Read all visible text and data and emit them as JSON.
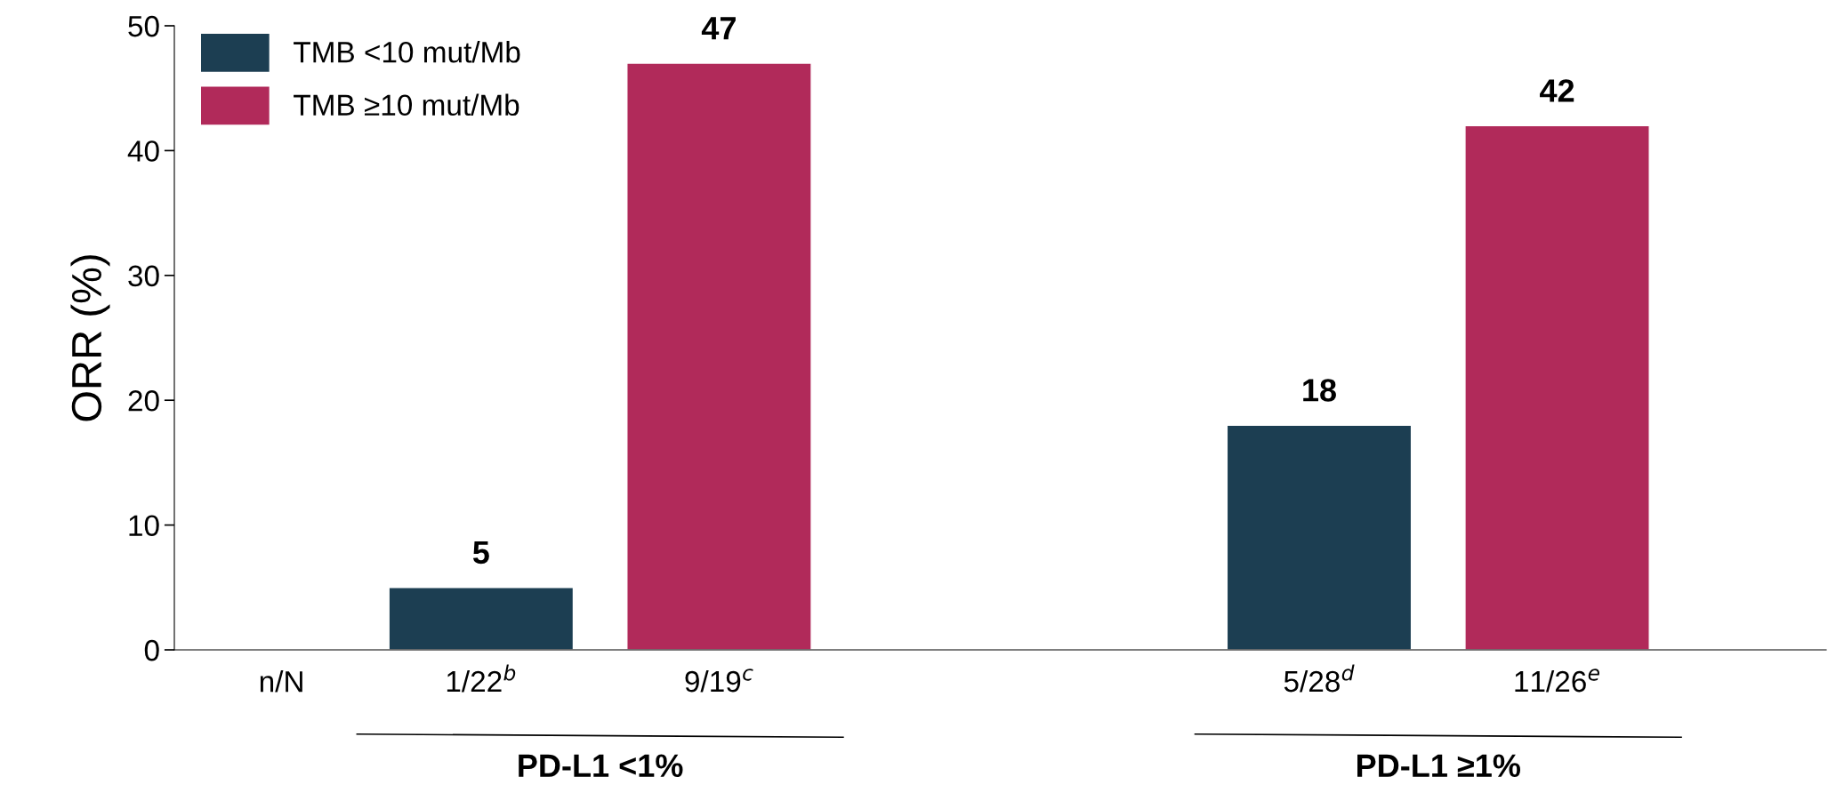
{
  "chart_data": {
    "type": "bar",
    "ylabel": "ORR (%)",
    "categories": [
      "PD-L1 <1%",
      "PD-L1 ≥1%"
    ],
    "series": [
      {
        "name": "TMB <10 mut/Mb",
        "color": "#1c3e52",
        "values": [
          5,
          18
        ]
      },
      {
        "name": "TMB ≥10 mut/Mb",
        "color": "#b12a5a",
        "values": [
          47,
          42
        ]
      }
    ],
    "ylim": [
      0,
      50
    ],
    "yticks": [
      0,
      10,
      20,
      30,
      40,
      50
    ],
    "data_labels": true,
    "grid": false,
    "legend": "top left",
    "annotations": [
      "n/N",
      "1/22$^{b}$",
      "5/28$^{d}$",
      "9/19$^{c}$",
      "11/26$^{e}$"
    ]
  }
}
